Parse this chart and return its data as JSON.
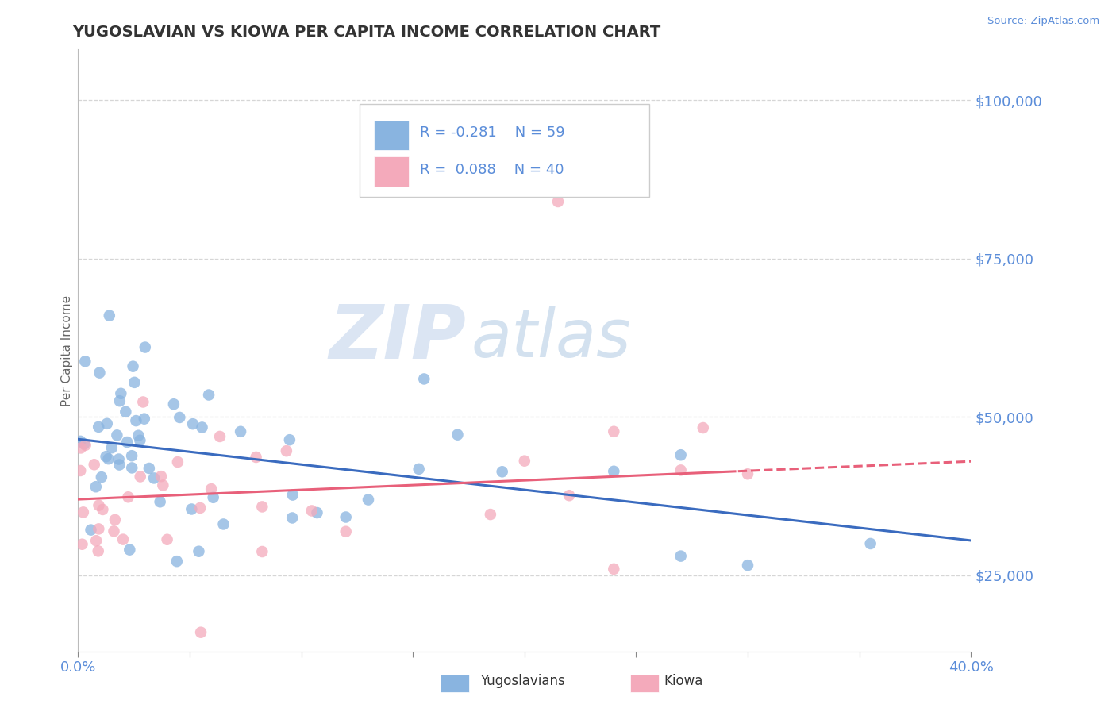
{
  "title": "YUGOSLAVIAN VS KIOWA PER CAPITA INCOME CORRELATION CHART",
  "source_text": "Source: ZipAtlas.com",
  "ylabel": "Per Capita Income",
  "xlim": [
    0.0,
    0.4
  ],
  "ylim": [
    13000,
    108000
  ],
  "yticks": [
    25000,
    50000,
    75000,
    100000
  ],
  "ytick_labels": [
    "$25,000",
    "$50,000",
    "$75,000",
    "$100,000"
  ],
  "xticks": [
    0.0,
    0.05,
    0.1,
    0.15,
    0.2,
    0.25,
    0.3,
    0.35,
    0.4
  ],
  "xtick_labels": [
    "0.0%",
    "",
    "",
    "",
    "",
    "",
    "",
    "",
    "40.0%"
  ],
  "blue_color": "#89B4E0",
  "pink_color": "#F4AABB",
  "blue_line_color": "#3A6BBF",
  "pink_line_color": "#E8607A",
  "legend_R1": "R = -0.281",
  "legend_N1": "N = 59",
  "legend_R2": "R =  0.088",
  "legend_N2": "N = 40",
  "watermark_ZIP": "ZIP",
  "watermark_atlas": "atlas",
  "blue_N": 59,
  "pink_N": 40,
  "blue_intercept": 46500,
  "blue_slope": -40000,
  "pink_intercept": 37000,
  "pink_slope": 15000,
  "axis_color": "#5B8DD9",
  "tick_color": "#888888",
  "background_color": "#FFFFFF",
  "grid_color": "#CCCCCC"
}
